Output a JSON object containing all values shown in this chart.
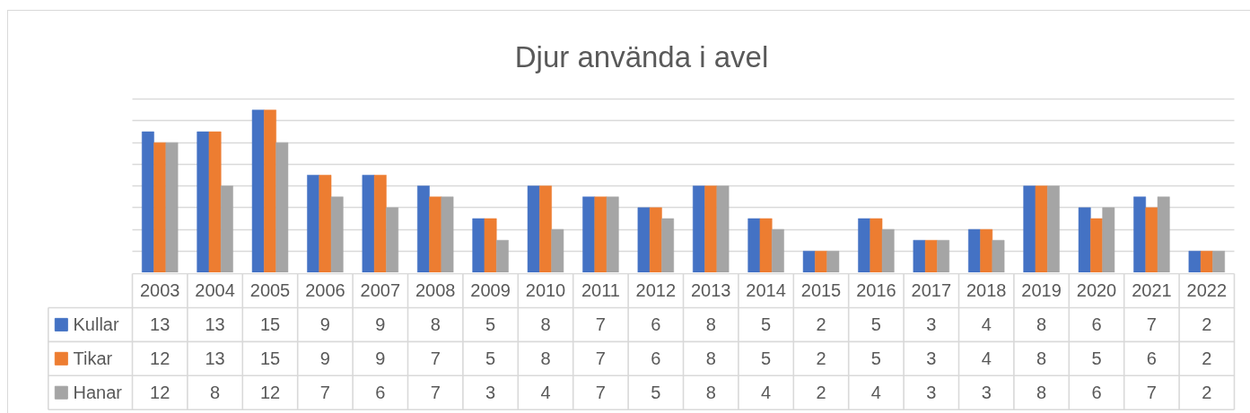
{
  "chart_data": {
    "type": "bar",
    "title": "Djur använda i avel",
    "categories": [
      "2003",
      "2004",
      "2005",
      "2006",
      "2007",
      "2008",
      "2009",
      "2010",
      "2011",
      "2012",
      "2013",
      "2014",
      "2015",
      "2016",
      "2017",
      "2018",
      "2019",
      "2020",
      "2021",
      "2022"
    ],
    "series": [
      {
        "name": "Kullar",
        "color": "#4472c4",
        "values": [
          13,
          13,
          15,
          9,
          9,
          8,
          5,
          8,
          7,
          6,
          8,
          5,
          2,
          5,
          3,
          4,
          8,
          6,
          7,
          2
        ]
      },
      {
        "name": "Tikar",
        "color": "#ed7d31",
        "values": [
          12,
          13,
          15,
          9,
          9,
          7,
          5,
          8,
          7,
          6,
          8,
          5,
          2,
          5,
          3,
          4,
          8,
          5,
          6,
          2
        ]
      },
      {
        "name": "Hanar",
        "color": "#a5a5a5",
        "values": [
          12,
          8,
          12,
          7,
          6,
          7,
          3,
          4,
          7,
          5,
          8,
          4,
          2,
          4,
          3,
          3,
          8,
          6,
          7,
          2
        ]
      }
    ],
    "grid": "y",
    "tick_labels": "x",
    "data_labels": true,
    "legend": "bottom"
  }
}
